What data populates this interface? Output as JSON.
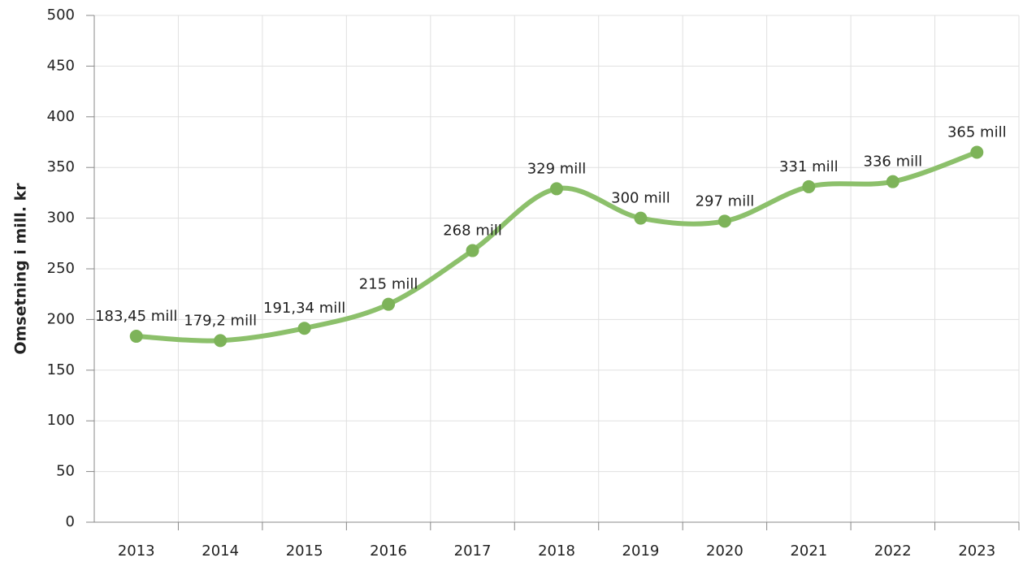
{
  "chart_data": {
    "type": "line",
    "y_label": "Omsetning i mill. kr",
    "categories": [
      "2013",
      "2014",
      "2015",
      "2016",
      "2017",
      "2018",
      "2019",
      "2020",
      "2021",
      "2022",
      "2023"
    ],
    "series": [
      {
        "color": "#8cc06b",
        "marker_color": "#7db359",
        "values": [
          183.45,
          179.2,
          191.34,
          215,
          268,
          329,
          300,
          297,
          331,
          336,
          365
        ],
        "value_labels": [
          "183,45 mill",
          "179,2 mill",
          "191,34 mill",
          "215 mill",
          "268 mill",
          "329 mill",
          "300 mill",
          "297 mill",
          "331 mill",
          "336 mill",
          "365 mill"
        ]
      }
    ],
    "ylim": [
      0,
      500
    ],
    "yticks": [
      0,
      50,
      100,
      150,
      200,
      250,
      300,
      350,
      400,
      450,
      500
    ],
    "grid": true,
    "smooth": true
  }
}
